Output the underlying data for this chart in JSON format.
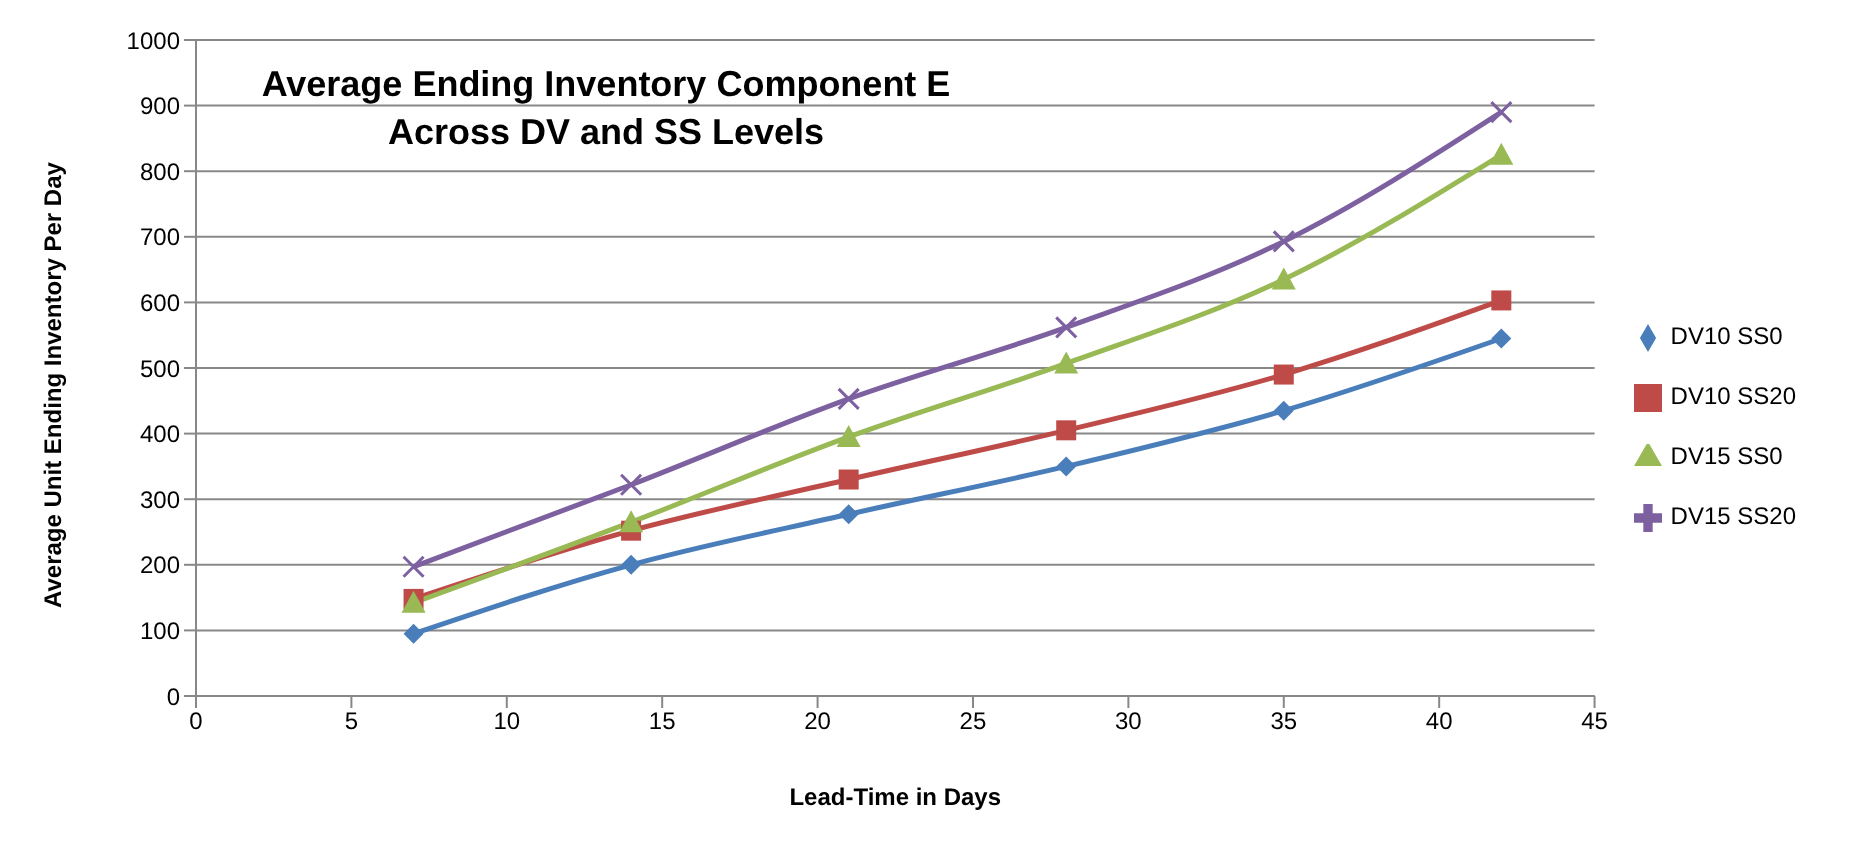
{
  "chart_data": {
    "type": "line",
    "title": "Average Ending Inventory Component E Across DV and SS Levels",
    "xlabel": "Lead-Time in Days",
    "ylabel": "Average Unit Ending Inventory Per Day",
    "x": [
      7,
      14,
      21,
      28,
      35,
      42
    ],
    "series": [
      {
        "name": "DV10 SS0",
        "color": "#4a7ebb",
        "marker": "diamond",
        "values": [
          95,
          200,
          277,
          350,
          435,
          545
        ]
      },
      {
        "name": "DV10 SS20",
        "color": "#be4b48",
        "marker": "square",
        "values": [
          148,
          252,
          330,
          405,
          490,
          603
        ]
      },
      {
        "name": "DV15 SS0",
        "color": "#98b954",
        "marker": "triangle",
        "values": [
          142,
          265,
          395,
          507,
          635,
          825
        ]
      },
      {
        "name": "DV15 SS20",
        "color": "#7d60a0",
        "marker": "cross",
        "values": [
          197,
          322,
          453,
          562,
          693,
          890
        ]
      }
    ],
    "xlim": [
      0,
      45
    ],
    "xticks": [
      0,
      5,
      10,
      15,
      20,
      25,
      30,
      35,
      40,
      45
    ],
    "ylim": [
      0,
      1000
    ],
    "yticks": [
      0,
      100,
      200,
      300,
      400,
      500,
      600,
      700,
      800,
      900,
      1000
    ],
    "grid": "y",
    "legend": "right"
  }
}
